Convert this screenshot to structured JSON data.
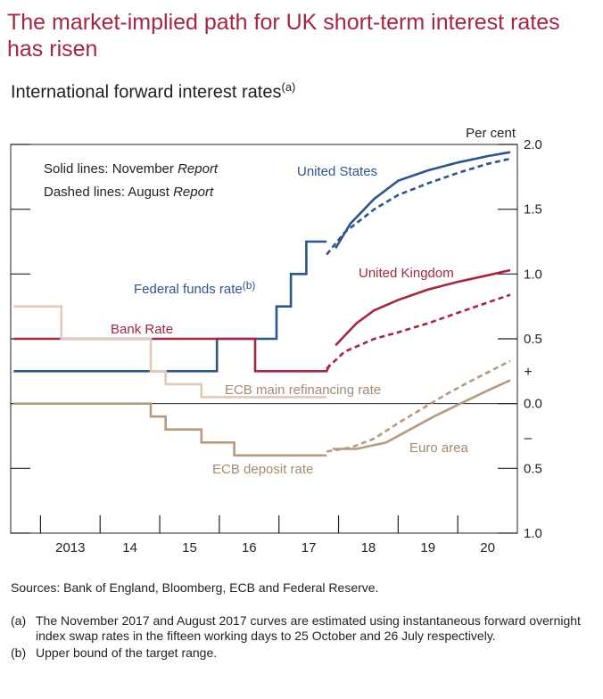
{
  "headline": "The market-implied path for UK short-term interest rates has risen",
  "chart_data": {
    "type": "line",
    "title": "International forward interest rates",
    "title_note": "(a)",
    "ylabel": "Per cent",
    "ylim": [
      -1.0,
      2.0
    ],
    "y_ticks": [
      {
        "value": 2.0,
        "label": "2.0"
      },
      {
        "value": 1.5,
        "label": "1.5"
      },
      {
        "value": 1.0,
        "label": "1.0"
      },
      {
        "value": 0.5,
        "label": "0.5"
      },
      {
        "value": 0.0,
        "label": "0.0"
      },
      {
        "value": -0.5,
        "label": "0.5"
      },
      {
        "value": -1.0,
        "label": "1.0"
      }
    ],
    "sign_labels": {
      "plus": "+",
      "minus": "–"
    },
    "xlim": [
      2012.5,
      2021.0
    ],
    "x_tick_labels": [
      {
        "x": 2013.5,
        "label": "2013"
      },
      {
        "x": 2014.5,
        "label": "14"
      },
      {
        "x": 2015.5,
        "label": "15"
      },
      {
        "x": 2016.5,
        "label": "16"
      },
      {
        "x": 2017.5,
        "label": "17"
      },
      {
        "x": 2018.5,
        "label": "18"
      },
      {
        "x": 2019.5,
        "label": "19"
      },
      {
        "x": 2020.5,
        "label": "20"
      }
    ],
    "x_tick_marks": [
      2013,
      2014,
      2015,
      2016,
      2017,
      2018,
      2019,
      2020
    ],
    "legend_lines": [
      {
        "text": "Solid lines:  November ",
        "italic": "Report"
      },
      {
        "text": "Dashed lines:  August ",
        "italic": "Report"
      }
    ],
    "annotations": {
      "united_states": "United States",
      "united_kingdom": "United Kingdom",
      "euro_area": "Euro area",
      "federal_funds_rate": "Federal funds rate",
      "federal_funds_rate_note": "(b)",
      "bank_rate": "Bank Rate",
      "ecb_main_refinancing_rate": "ECB main refinancing rate",
      "ecb_deposit_rate": "ECB deposit rate"
    },
    "colors": {
      "us": "#2c5689",
      "uk": "#a4263f",
      "euro": "#b59a80",
      "ecb_mro": "#dccbb8",
      "axis": "#231f20"
    },
    "series": [
      {
        "name": "Federal funds rate",
        "key": "us",
        "style": "step",
        "points": [
          [
            2012.55,
            0.25
          ],
          [
            2015.96,
            0.25
          ],
          [
            2015.96,
            0.5
          ],
          [
            2016.96,
            0.5
          ],
          [
            2016.96,
            0.75
          ],
          [
            2017.2,
            0.75
          ],
          [
            2017.2,
            1.0
          ],
          [
            2017.46,
            1.0
          ],
          [
            2017.46,
            1.25
          ],
          [
            2017.8,
            1.25
          ]
        ]
      },
      {
        "name": "Bank Rate",
        "key": "uk",
        "style": "step",
        "points": [
          [
            2012.55,
            0.5
          ],
          [
            2016.6,
            0.5
          ],
          [
            2016.6,
            0.25
          ],
          [
            2017.8,
            0.25
          ],
          [
            2017.85,
            0.3
          ]
        ]
      },
      {
        "name": "ECB main refinancing rate",
        "key": "ecb_mro",
        "style": "step",
        "points": [
          [
            2012.55,
            0.75
          ],
          [
            2013.35,
            0.75
          ],
          [
            2013.35,
            0.5
          ],
          [
            2014.85,
            0.5
          ],
          [
            2014.85,
            0.25
          ],
          [
            2015.1,
            0.25
          ],
          [
            2015.1,
            0.15
          ],
          [
            2015.7,
            0.15
          ],
          [
            2015.7,
            0.05
          ],
          [
            2017.8,
            0.05
          ]
        ]
      },
      {
        "name": "ECB deposit rate",
        "key": "euro",
        "style": "step",
        "points": [
          [
            2012.55,
            0.0
          ],
          [
            2014.85,
            0.0
          ],
          [
            2014.85,
            -0.1
          ],
          [
            2015.1,
            -0.1
          ],
          [
            2015.1,
            -0.2
          ],
          [
            2015.7,
            -0.2
          ],
          [
            2015.7,
            -0.3
          ],
          [
            2016.25,
            -0.3
          ],
          [
            2016.25,
            -0.4
          ],
          [
            2017.8,
            -0.4
          ]
        ]
      },
      {
        "name": "United States",
        "key": "us",
        "style": "solid",
        "points": [
          [
            2017.95,
            1.2
          ],
          [
            2018.2,
            1.39
          ],
          [
            2018.6,
            1.58
          ],
          [
            2019.0,
            1.72
          ],
          [
            2019.5,
            1.8
          ],
          [
            2020.0,
            1.86
          ],
          [
            2020.5,
            1.91
          ],
          [
            2020.88,
            1.94
          ]
        ]
      },
      {
        "name": "United States",
        "key": "us",
        "style": "dashed",
        "points": [
          [
            2017.8,
            1.15
          ],
          [
            2018.1,
            1.32
          ],
          [
            2018.6,
            1.5
          ],
          [
            2019.0,
            1.61
          ],
          [
            2019.5,
            1.7
          ],
          [
            2020.0,
            1.78
          ],
          [
            2020.5,
            1.85
          ],
          [
            2020.88,
            1.89
          ]
        ]
      },
      {
        "name": "United Kingdom",
        "key": "uk",
        "style": "solid",
        "points": [
          [
            2017.95,
            0.45
          ],
          [
            2018.3,
            0.62
          ],
          [
            2018.6,
            0.72
          ],
          [
            2019.0,
            0.8
          ],
          [
            2019.5,
            0.88
          ],
          [
            2020.0,
            0.94
          ],
          [
            2020.5,
            0.99
          ],
          [
            2020.88,
            1.03
          ]
        ]
      },
      {
        "name": "United Kingdom",
        "key": "uk",
        "style": "dashed",
        "points": [
          [
            2017.8,
            0.27
          ],
          [
            2018.1,
            0.4
          ],
          [
            2018.6,
            0.5
          ],
          [
            2019.0,
            0.55
          ],
          [
            2019.5,
            0.62
          ],
          [
            2020.0,
            0.7
          ],
          [
            2020.5,
            0.78
          ],
          [
            2020.88,
            0.84
          ]
        ]
      },
      {
        "name": "Euro area",
        "key": "euro",
        "style": "solid",
        "points": [
          [
            2017.9,
            -0.35
          ],
          [
            2018.3,
            -0.35
          ],
          [
            2018.8,
            -0.3
          ],
          [
            2019.2,
            -0.2
          ],
          [
            2019.6,
            -0.1
          ],
          [
            2020.0,
            -0.01
          ],
          [
            2020.5,
            0.1
          ],
          [
            2020.88,
            0.18
          ]
        ]
      },
      {
        "name": "Euro area",
        "key": "euro",
        "style": "dashed",
        "points": [
          [
            2017.8,
            -0.37
          ],
          [
            2018.2,
            -0.34
          ],
          [
            2018.6,
            -0.27
          ],
          [
            2019.0,
            -0.15
          ],
          [
            2019.4,
            -0.04
          ],
          [
            2019.8,
            0.07
          ],
          [
            2020.2,
            0.17
          ],
          [
            2020.5,
            0.24
          ],
          [
            2020.88,
            0.33
          ]
        ]
      }
    ]
  },
  "sources": "Sources:  Bank of England, Bloomberg, ECB and Federal Reserve.",
  "notes": [
    {
      "ref": "(a)",
      "text": "The November 2017 and August 2017 curves are estimated using instantaneous forward overnight index swap rates in the fifteen working days to 25 October and 26 July respectively."
    },
    {
      "ref": "(b)",
      "text": "Upper bound of the target range."
    }
  ]
}
